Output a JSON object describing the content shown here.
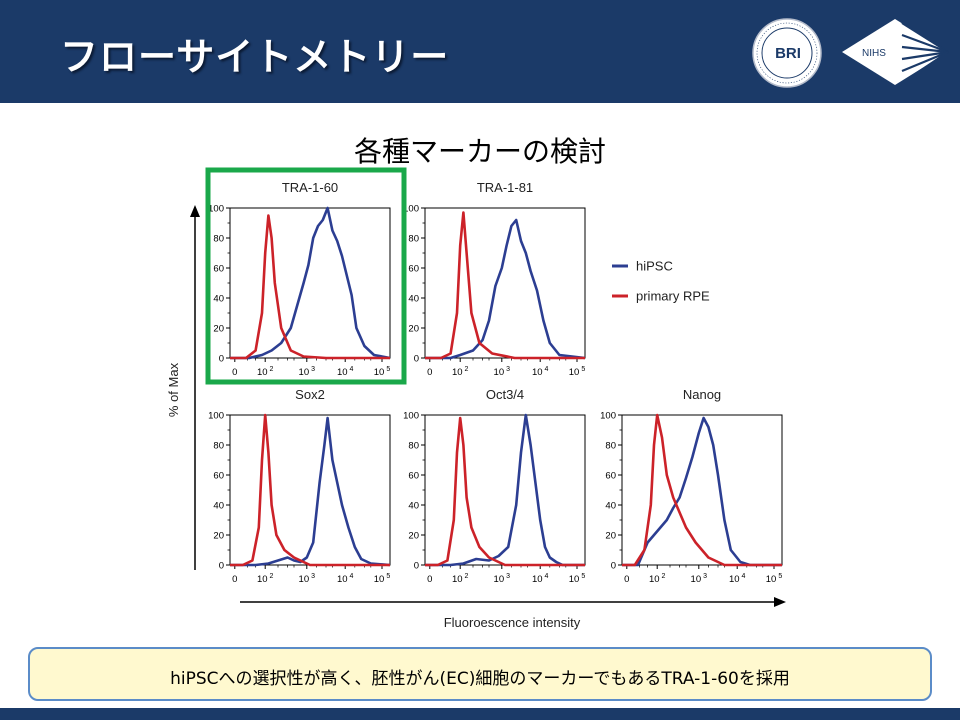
{
  "header": {
    "title": "フローサイトメトリー",
    "logos": [
      {
        "name": "bri-logo",
        "text": "BRI"
      },
      {
        "name": "nihs-logo",
        "text": "NIHS"
      }
    ]
  },
  "subtitle": "各種マーカーの検討",
  "footer": {
    "text": "hiPSCへの選択性が高く、胚性がん(EC)細胞のマーカーでもあるTRA-1-60を採用"
  },
  "colors": {
    "header_bg": "#1b3a68",
    "hipsc": "#2c3e92",
    "primary_rpe": "#cc2229",
    "highlight": "#1aa84a",
    "footer_border": "#5b8cc8",
    "footer_bg": "#fff9cf"
  },
  "chart_data": {
    "type": "line",
    "ylabel": "% of Max",
    "xlabel": "Fluoroescence intensity",
    "legend": {
      "placement": "right",
      "entries": [
        {
          "name": "hiPSC",
          "color": "#2c3e92"
        },
        {
          "name": "primary RPE",
          "color": "#cc2229"
        }
      ]
    },
    "y_ticks": [
      "100",
      "80",
      "60",
      "40",
      "20",
      "0"
    ],
    "ylim": [
      0,
      100
    ],
    "x_ticks": [
      {
        "base": "0",
        "exp": ""
      },
      {
        "base": "10",
        "exp": "2"
      },
      {
        "base": "10",
        "exp": "3"
      },
      {
        "base": "10",
        "exp": "4"
      },
      {
        "base": "10",
        "exp": "5"
      }
    ],
    "highlighted_panel": "TRA-1-60",
    "panels": [
      {
        "title": "TRA-1-60",
        "series": [
          {
            "name": "hiPSC",
            "x": [
              0,
              0.6,
              1.0,
              1.3,
              1.6,
              1.9,
              2.1,
              2.3,
              2.45,
              2.6,
              2.75,
              2.9,
              3.05,
              3.2,
              3.35,
              3.5,
              3.65,
              3.8,
              3.95,
              4.2,
              4.5,
              5.0
            ],
            "y": [
              0,
              0,
              2,
              5,
              10,
              20,
              35,
              50,
              62,
              80,
              88,
              92,
              100,
              85,
              78,
              68,
              55,
              42,
              20,
              8,
              2,
              0
            ]
          },
          {
            "name": "primary RPE",
            "x": [
              0,
              0.5,
              0.8,
              1.0,
              1.1,
              1.2,
              1.3,
              1.4,
              1.6,
              1.9,
              2.3,
              3.0,
              5.0
            ],
            "y": [
              0,
              0,
              5,
              30,
              70,
              95,
              80,
              50,
              20,
              5,
              1,
              0,
              0
            ]
          }
        ]
      },
      {
        "title": "TRA-1-81",
        "series": [
          {
            "name": "hiPSC",
            "x": [
              0,
              0.8,
              1.1,
              1.5,
              1.8,
              2.0,
              2.2,
              2.4,
              2.55,
              2.7,
              2.85,
              3.0,
              3.15,
              3.3,
              3.5,
              3.7,
              3.9,
              4.2,
              5.0
            ],
            "y": [
              0,
              0,
              2,
              5,
              12,
              25,
              48,
              60,
              75,
              88,
              92,
              78,
              70,
              58,
              45,
              25,
              10,
              2,
              0
            ]
          },
          {
            "name": "primary RPE",
            "x": [
              0,
              0.5,
              0.8,
              1.0,
              1.1,
              1.2,
              1.3,
              1.45,
              1.7,
              2.1,
              2.8,
              5.0
            ],
            "y": [
              0,
              0,
              3,
              30,
              75,
              97,
              70,
              30,
              10,
              3,
              0,
              0
            ]
          }
        ]
      },
      {
        "title": "Sox2",
        "series": [
          {
            "name": "hiPSC",
            "x": [
              0,
              0.8,
              1.2,
              1.5,
              1.8,
              2.0,
              2.2,
              2.4,
              2.6,
              2.8,
              2.95,
              3.05,
              3.2,
              3.35,
              3.5,
              3.7,
              3.9,
              4.1,
              4.4,
              5.0
            ],
            "y": [
              0,
              0,
              1,
              3,
              5,
              3,
              2,
              5,
              15,
              55,
              80,
              98,
              70,
              55,
              40,
              25,
              12,
              4,
              1,
              0
            ]
          },
          {
            "name": "primary RPE",
            "x": [
              0,
              0.4,
              0.7,
              0.9,
              1.0,
              1.1,
              1.2,
              1.3,
              1.45,
              1.7,
              2.0,
              2.5,
              5.0
            ],
            "y": [
              0,
              0,
              3,
              25,
              70,
              100,
              75,
              40,
              20,
              10,
              5,
              0,
              0
            ]
          }
        ]
      },
      {
        "title": "Oct3/4",
        "series": [
          {
            "name": "hiPSC",
            "x": [
              0,
              0.8,
              1.2,
              1.6,
              2.0,
              2.3,
              2.6,
              2.85,
              3.0,
              3.15,
              3.3,
              3.45,
              3.6,
              3.75,
              3.9,
              4.1,
              4.3,
              5.0
            ],
            "y": [
              0,
              0,
              1,
              4,
              3,
              6,
              12,
              40,
              75,
              100,
              80,
              55,
              30,
              12,
              5,
              2,
              0,
              0
            ]
          },
          {
            "name": "primary RPE",
            "x": [
              0,
              0.4,
              0.7,
              0.9,
              1.0,
              1.1,
              1.2,
              1.3,
              1.45,
              1.7,
              2.0,
              2.5,
              5.0
            ],
            "y": [
              0,
              0,
              3,
              30,
              75,
              98,
              80,
              45,
              25,
              12,
              5,
              0,
              0
            ]
          }
        ]
      },
      {
        "title": "Nanog",
        "series": [
          {
            "name": "hiPSC",
            "x": [
              0,
              0.5,
              0.8,
              1.0,
              1.2,
              1.4,
              1.6,
              1.8,
              2.0,
              2.2,
              2.4,
              2.55,
              2.7,
              2.85,
              3.0,
              3.2,
              3.4,
              3.7,
              4.0,
              5.0
            ],
            "y": [
              0,
              0,
              15,
              20,
              25,
              30,
              38,
              45,
              58,
              72,
              88,
              98,
              92,
              80,
              60,
              30,
              10,
              2,
              0,
              0
            ]
          },
          {
            "name": "primary RPE",
            "x": [
              0,
              0.4,
              0.7,
              0.9,
              1.0,
              1.1,
              1.25,
              1.4,
              1.6,
              1.8,
              2.0,
              2.3,
              2.7,
              3.2,
              5.0
            ],
            "y": [
              0,
              0,
              10,
              40,
              80,
              100,
              85,
              60,
              45,
              35,
              25,
              15,
              5,
              0,
              0
            ]
          }
        ]
      }
    ]
  }
}
